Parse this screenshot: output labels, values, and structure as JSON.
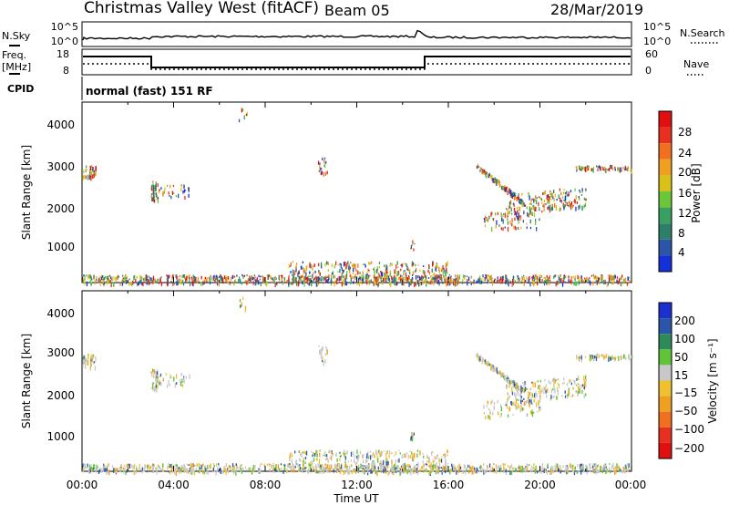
{
  "header": {
    "station": "Christmas Valley West (fitACF)",
    "beam": "Beam 05",
    "date": "28/Mar/2019"
  },
  "left_labels": {
    "nsky": "N.Sky",
    "freq": "Freq.",
    "freq_unit": "[MHz]",
    "cpid": "CPID"
  },
  "right_labels": {
    "nsearch": "N.Search",
    "nave": "Nave"
  },
  "top_axis": {
    "nsky_ticks": [
      "10^5",
      "10^0"
    ],
    "nsearch_ticks": [
      "10^5",
      "10^0"
    ],
    "freq_ticks": [
      "18",
      "8"
    ],
    "nave_ticks": [
      "60",
      "0"
    ]
  },
  "cpid_text": "normal (fast) 151 RF",
  "colors": {
    "power_scale": [
      "#1530d8",
      "#2a55a8",
      "#2e7f6a",
      "#3aa060",
      "#6cc63a",
      "#d8c21a",
      "#f0a020",
      "#f07020",
      "#e83020",
      "#e01010"
    ],
    "velocity_scale": [
      "#1c2fd0",
      "#2a55a8",
      "#2e8a5a",
      "#5fc43a",
      "#c8c8c8",
      "#f0c030",
      "#f0a020",
      "#f07020",
      "#e83020",
      "#e01010"
    ]
  },
  "chart_data": [
    {
      "type": "heatmap",
      "name": "power",
      "xlabel": "",
      "ylabel": "Slant Range [km]",
      "yticks": [
        "4000",
        "3000",
        "2000",
        "1000"
      ],
      "ylim": [
        180,
        4500
      ],
      "xlim": [
        0,
        24
      ],
      "colorbar_label": "Power [dB]",
      "colorbar_ticks": [
        "28",
        "24",
        "20",
        "16",
        "12",
        "8",
        "4"
      ],
      "colorbar_range": [
        0,
        30
      ]
    },
    {
      "type": "heatmap",
      "name": "velocity",
      "xlabel": "Time UT",
      "ylabel": "Slant Range [km]",
      "yticks": [
        "4000",
        "3000",
        "2000",
        "1000"
      ],
      "ylim": [
        180,
        4500
      ],
      "xlim": [
        0,
        24
      ],
      "xticks": [
        "00:00",
        "04:00",
        "08:00",
        "12:00",
        "16:00",
        "20:00",
        "00:00"
      ],
      "colorbar_label": "Velocity [m s⁻¹]",
      "colorbar_ticks": [
        "200",
        "100",
        "50",
        "15",
        "−15",
        "−50",
        "−100",
        "−200"
      ]
    }
  ]
}
